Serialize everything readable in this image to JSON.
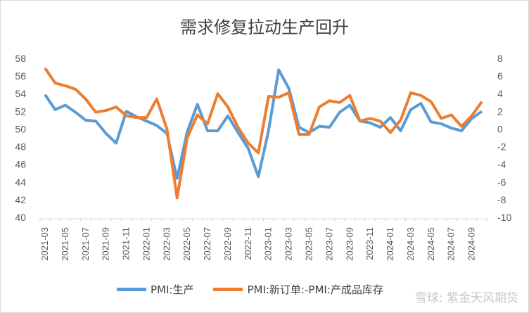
{
  "chart_data": {
    "type": "line",
    "title": "需求修复拉动生产回升",
    "x": [
      "2021-03",
      "2021-04",
      "2021-05",
      "2021-06",
      "2021-07",
      "2021-08",
      "2021-09",
      "2021-10",
      "2021-11",
      "2021-12",
      "2022-01",
      "2022-02",
      "2022-03",
      "2022-04",
      "2022-05",
      "2022-06",
      "2022-07",
      "2022-08",
      "2022-09",
      "2022-10",
      "2022-11",
      "2022-12",
      "2023-01",
      "2023-02",
      "2023-03",
      "2023-04",
      "2023-05",
      "2023-06",
      "2023-07",
      "2023-08",
      "2023-09",
      "2023-10",
      "2023-11",
      "2023-12",
      "2024-01",
      "2024-02",
      "2024-03",
      "2024-04",
      "2024-05",
      "2024-06",
      "2024-07",
      "2024-08",
      "2024-09",
      "2024-10"
    ],
    "xtick_labels": [
      "2021-03",
      "2021-05",
      "2021-07",
      "2021-09",
      "2021-11",
      "2022-01",
      "2022-03",
      "2022-05",
      "2022-07",
      "2022-09",
      "2022-11",
      "2023-01",
      "2023-03",
      "2023-05",
      "2023-07",
      "2023-09",
      "2023-11",
      "2024-01",
      "2024-03",
      "2024-05",
      "2024-07",
      "2024-09"
    ],
    "y_left": {
      "ylim": [
        40,
        58
      ],
      "ticks": [
        "58",
        "56",
        "54",
        "52",
        "50",
        "48",
        "46",
        "44",
        "42",
        "40"
      ]
    },
    "y_right": {
      "ylim": [
        -10,
        8
      ],
      "ticks": [
        "8",
        "6",
        "4",
        "2",
        "0",
        "-2",
        "-4",
        "-6",
        "-8",
        "-10"
      ]
    },
    "series": [
      {
        "name": "PMI:生产",
        "axis": "left",
        "color": "#5b9bd5",
        "values": [
          53.9,
          52.2,
          52.7,
          51.9,
          51.0,
          50.9,
          49.5,
          48.4,
          52.0,
          51.4,
          50.9,
          50.4,
          49.5,
          44.4,
          49.7,
          52.8,
          49.8,
          49.8,
          51.5,
          49.6,
          47.8,
          44.6,
          49.8,
          56.7,
          54.6,
          50.2,
          49.6,
          50.3,
          50.2,
          51.9,
          52.7,
          50.9,
          50.7,
          50.2,
          51.3,
          49.8,
          52.2,
          52.9,
          50.8,
          50.6,
          50.1,
          49.8,
          51.2,
          52.0
        ]
      },
      {
        "name": "PMI:新订单:-PMI:产成品库存",
        "axis": "right",
        "color": "#ed7d31",
        "values": [
          6.9,
          5.2,
          4.9,
          4.5,
          3.4,
          1.9,
          2.1,
          2.5,
          1.5,
          1.3,
          1.3,
          3.4,
          0.0,
          -7.8,
          -1.0,
          1.6,
          0.6,
          4.0,
          2.5,
          0.2,
          -1.6,
          -2.7,
          3.7,
          3.6,
          4.1,
          -0.6,
          -0.6,
          2.5,
          3.2,
          3.0,
          3.8,
          0.9,
          1.2,
          0.9,
          -0.4,
          1.0,
          4.1,
          3.8,
          3.1,
          1.2,
          1.6,
          0.3,
          1.5,
          3.1
        ]
      }
    ],
    "grid": false,
    "legend": "bottom"
  },
  "watermark": "雪球: 紫金天风期货"
}
